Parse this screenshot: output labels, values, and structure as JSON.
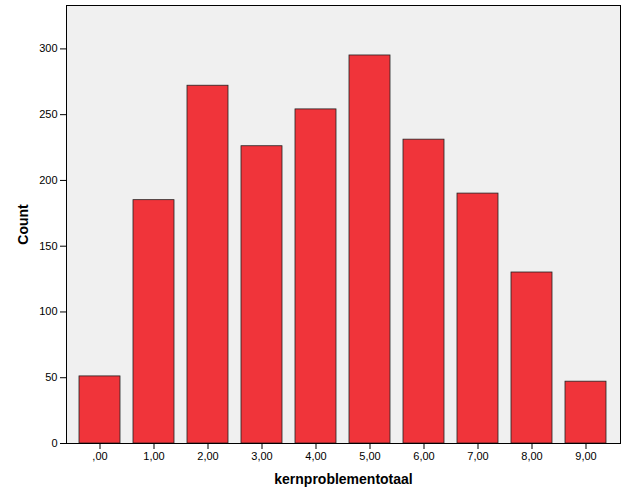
{
  "chart_data": {
    "type": "bar",
    "x_label": "kernproblementotaal",
    "y_label": "Count",
    "categories": [
      ",00",
      "1,00",
      "2,00",
      "3,00",
      "4,00",
      "5,00",
      "6,00",
      "7,00",
      "8,00",
      "9,00"
    ],
    "values": [
      51,
      185,
      272,
      226,
      254,
      295,
      231,
      190,
      130,
      47
    ],
    "color": "#f0343a",
    "ylim": [
      0,
      333
    ],
    "yticks": [
      0,
      50,
      100,
      150,
      200,
      250,
      300
    ],
    "grid": false
  }
}
